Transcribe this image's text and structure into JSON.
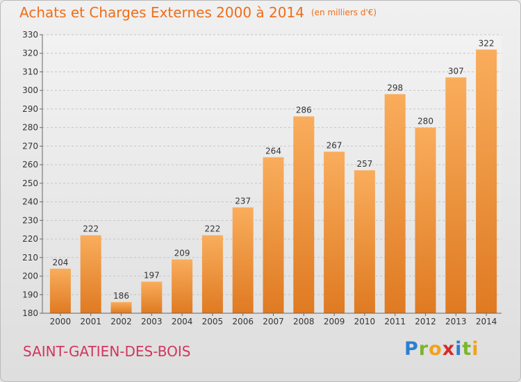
{
  "header": {
    "title": "Achats et Charges Externes 2000 à 2014",
    "unit": "(en milliers d'€)"
  },
  "footer": {
    "commune": "SAINT-GATIEN-DES-BOIS",
    "logo": [
      "P",
      "r",
      "o",
      "x",
      "i",
      "t",
      "i"
    ],
    "logo_colors": [
      "#2b7fd1",
      "#7bb62c",
      "#f2a21a",
      "#d72a2a",
      "#2b7fd1",
      "#7bb62c",
      "#f2a21a"
    ]
  },
  "colors": {
    "bar_light": "#f9ad5c",
    "bar_dark": "#df7a22",
    "title": "#ef6d18",
    "commune": "#d2355e"
  },
  "chart_data": {
    "type": "bar",
    "title": "Achats et Charges Externes 2000 à 2014",
    "subtitle": "(en milliers d'€)",
    "xlabel": "",
    "ylabel": "",
    "categories": [
      "2000",
      "2001",
      "2002",
      "2003",
      "2004",
      "2005",
      "2006",
      "2007",
      "2008",
      "2009",
      "2010",
      "2011",
      "2012",
      "2013",
      "2014"
    ],
    "values": [
      204,
      222,
      186,
      197,
      209,
      222,
      237,
      264,
      286,
      267,
      257,
      298,
      280,
      307,
      322
    ],
    "ylim": [
      180,
      330
    ],
    "yticks": [
      180,
      190,
      200,
      210,
      220,
      230,
      240,
      250,
      260,
      270,
      280,
      290,
      300,
      310,
      320,
      330
    ],
    "grid": true,
    "legend": "none"
  }
}
